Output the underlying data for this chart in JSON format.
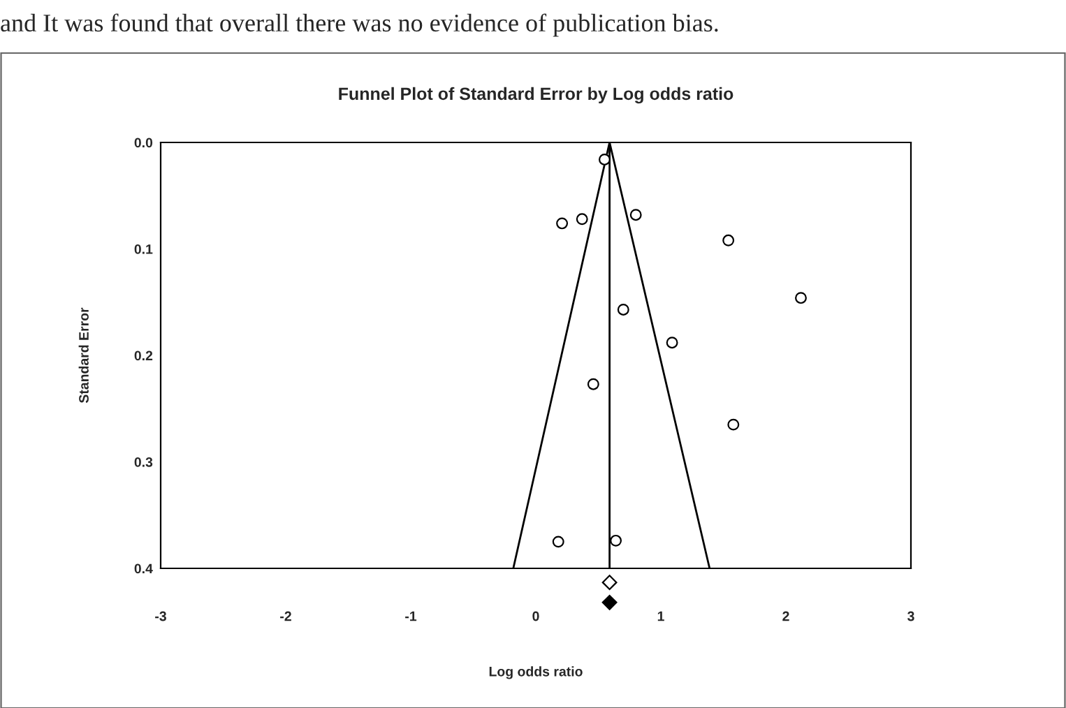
{
  "chart_data": {
    "type": "scatter",
    "title": "Funnel Plot of Standard Error by Log odds ratio",
    "xlabel": "Log odds ratio",
    "ylabel": "Standard Error",
    "annotations": [
      "and It was found that overall there was no evidence of publication bias."
    ],
    "series": [
      {
        "marker": "circle",
        "color": "#ffffff",
        "x": [
          0.55,
          0.21,
          0.37,
          0.8,
          1.54,
          2.12,
          0.7,
          1.09,
          0.46,
          1.58,
          0.18,
          0.64
        ],
        "values": [
          0.016,
          0.076,
          0.072,
          0.068,
          0.092,
          0.146,
          0.157,
          0.188,
          0.227,
          0.265,
          0.375,
          0.374
        ]
      },
      {
        "type": "line",
        "marker": "none",
        "color": "#000000",
        "x": [
          -0.18,
          0.59,
          1.39
        ],
        "values": [
          0.4,
          0.0,
          0.4
        ]
      }
    ],
    "ref_lines": [
      {
        "axis": "x",
        "value": 0.59,
        "color": "#000000"
      }
    ],
    "xlim": [
      -3,
      3
    ],
    "xticks": [
      -3,
      -2,
      -1,
      0,
      1,
      2,
      3
    ],
    "ylim": [
      0.4,
      0.0
    ],
    "yticks": [
      {
        "value": 0.0,
        "label": "0.0"
      },
      0.1,
      0.2,
      0.3,
      0.4
    ],
    "grid": false,
    "legend": false
  }
}
